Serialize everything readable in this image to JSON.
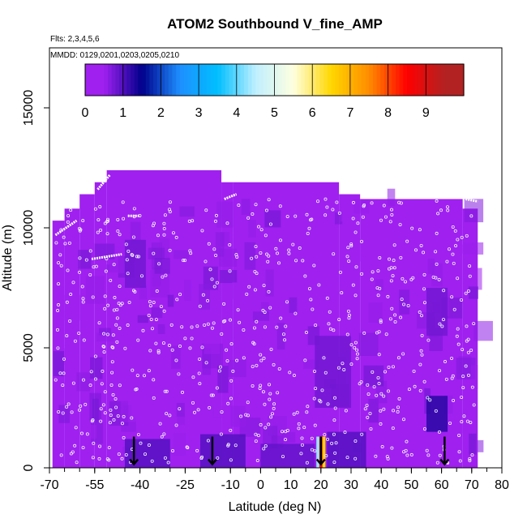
{
  "chart_data": {
    "type": "heatmap",
    "title": "ATOM2 Southbound V_fine_AMP",
    "flights_note": "Flts: 2,3,4,5,6",
    "dates_note": "MMDD: 0129,0201,0203,0205,0210",
    "xlabel": "Latitude (deg N)",
    "ylabel": "Altitude (m)",
    "xlim": [
      -70,
      80
    ],
    "ylim": [
      0,
      17500
    ],
    "x_ticks": [
      -70,
      -55,
      -40,
      -25,
      -10,
      0,
      10,
      20,
      30,
      40,
      50,
      60,
      70,
      80
    ],
    "x_tick_labels": [
      "-70",
      "-55",
      "-40",
      "-25",
      "-10",
      "0",
      "10",
      "20",
      "30",
      "40",
      "50",
      "60",
      "70",
      "80"
    ],
    "y_ticks": [
      0,
      5000,
      10000,
      15000
    ],
    "y_tick_labels": [
      "0",
      "5000",
      "10000",
      "15000"
    ],
    "colorbar": {
      "min": 0,
      "max": 10,
      "ticks": [
        0,
        1,
        2,
        3,
        4,
        5,
        6,
        7,
        8,
        9
      ],
      "tick_labels": [
        "0",
        "1",
        "2",
        "3",
        "4",
        "5",
        "6",
        "7",
        "8",
        "9"
      ],
      "colors": [
        "#a020f0",
        "#00008b",
        "#1e8fff",
        "#00bfff",
        "#bfefff",
        "#ffffe0",
        "#ffd700",
        "#ff8c00",
        "#ff0000",
        "#b22222"
      ]
    },
    "background_value": 0.4,
    "data_extent": {
      "lat_min": -69,
      "lat_max": 72,
      "top_altitude_segments": [
        {
          "lat_from": -69,
          "lat_to": -65,
          "alt_top": 10300
        },
        {
          "lat_from": -65,
          "lat_to": -60,
          "alt_top": 10800
        },
        {
          "lat_from": -60,
          "lat_to": -55,
          "alt_top": 11400
        },
        {
          "lat_from": -55,
          "lat_to": -51,
          "alt_top": 11900
        },
        {
          "lat_from": -51,
          "lat_to": -13,
          "alt_top": 12400
        },
        {
          "lat_from": -13,
          "lat_to": -9,
          "alt_top": 11900
        },
        {
          "lat_from": -9,
          "lat_to": 26,
          "alt_top": 11900
        },
        {
          "lat_from": 26,
          "lat_to": 33,
          "alt_top": 11400
        },
        {
          "lat_from": 33,
          "lat_to": 67,
          "alt_top": 11200
        },
        {
          "lat_from": 67,
          "lat_to": 72,
          "alt_top": 10800
        }
      ]
    },
    "features": [
      {
        "lat_from": -45,
        "lat_to": -30,
        "alt_from": 0,
        "alt_to": 1200,
        "value": 1.0
      },
      {
        "lat_from": -20,
        "lat_to": -5,
        "alt_from": 0,
        "alt_to": 1400,
        "value": 1.0
      },
      {
        "lat_from": 0,
        "lat_to": 18,
        "alt_from": 0,
        "alt_to": 1000,
        "value": 0.9
      },
      {
        "lat_from": 22,
        "lat_to": 35,
        "alt_from": 0,
        "alt_to": 1500,
        "value": 1.0
      },
      {
        "lat_from": 18,
        "lat_to": 30,
        "alt_from": 2500,
        "alt_to": 5500,
        "value": 0.8
      },
      {
        "lat_from": 55,
        "lat_to": 62,
        "alt_from": 1500,
        "alt_to": 3000,
        "value": 1.3
      },
      {
        "lat_from": -45,
        "lat_to": -38,
        "alt_from": 7500,
        "alt_to": 9500,
        "value": 0.8
      },
      {
        "lat_from": 55,
        "lat_to": 62,
        "alt_from": 5500,
        "alt_to": 7500,
        "value": 0.8
      },
      {
        "lat_from": 18.5,
        "lat_to": 19.5,
        "alt_from": 0,
        "alt_to": 1300,
        "value": 4.3
      },
      {
        "lat_from": 19.5,
        "lat_to": 20.5,
        "alt_from": 0,
        "alt_to": 1300,
        "value": 8.6
      },
      {
        "lat_from": 20.5,
        "lat_to": 21.5,
        "alt_from": 0,
        "alt_to": 1300,
        "value": 6.5
      }
    ],
    "arrows_lat": [
      -42,
      -16,
      20,
      61
    ],
    "flight_tracks": [
      {
        "from": [
          -68,
          9700
        ],
        "to": [
          -61,
          10300
        ]
      },
      {
        "from": [
          -54,
          11600
        ],
        "to": [
          -50,
          12200
        ]
      },
      {
        "from": [
          -56,
          8700
        ],
        "to": [
          -46,
          8900
        ]
      },
      {
        "from": [
          -44,
          10500
        ],
        "to": [
          -40,
          10500
        ]
      },
      {
        "from": [
          -12,
          11200
        ],
        "to": [
          -8,
          11400
        ]
      },
      {
        "from": [
          68,
          11200
        ],
        "to": [
          72,
          11100
        ]
      }
    ]
  }
}
